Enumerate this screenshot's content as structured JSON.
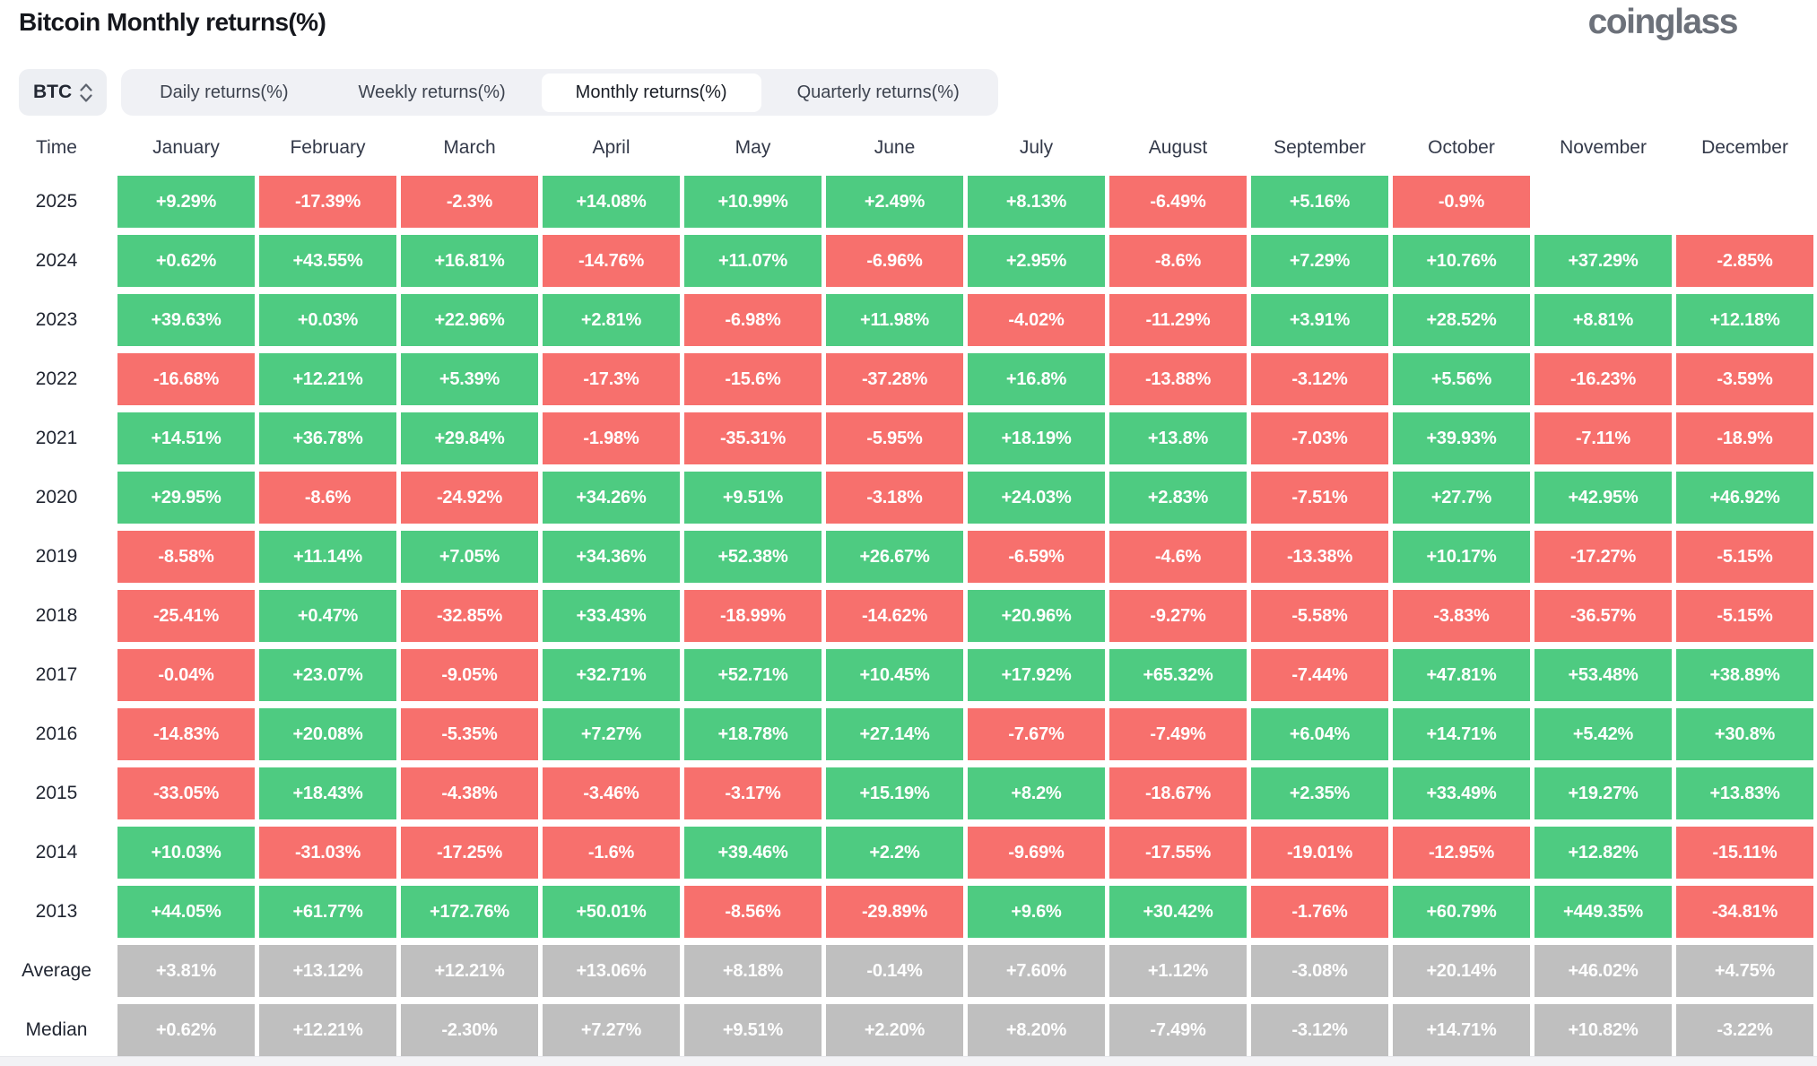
{
  "page": {
    "title": "Bitcoin Monthly returns(%)",
    "brand_logo": "coinglass"
  },
  "controls": {
    "coin_selector": {
      "value": "BTC",
      "icon": "sort-arrows-icon"
    },
    "tabs": [
      {
        "label": "Daily returns(%)",
        "active": false
      },
      {
        "label": "Weekly returns(%)",
        "active": false
      },
      {
        "label": "Monthly returns(%)",
        "active": true
      },
      {
        "label": "Quarterly returns(%)",
        "active": false
      }
    ]
  },
  "colors": {
    "positive": "#4ecb81",
    "negative": "#f7706d",
    "summary_gray": "#bfbfbf",
    "tabbar_bg": "#f0f1f5",
    "tab_active_bg": "#ffffff",
    "chip_bg": "#edeff3"
  },
  "table": {
    "time_header": "Time"
  },
  "chart_data": {
    "type": "heatmap",
    "title": "Bitcoin Monthly returns(%)",
    "columns": [
      "January",
      "February",
      "March",
      "April",
      "May",
      "June",
      "July",
      "August",
      "September",
      "October",
      "November",
      "December"
    ],
    "rows": [
      {
        "label": "2025",
        "kind": "year",
        "display": [
          "+9.29%",
          "-17.39%",
          "-2.3%",
          "+14.08%",
          "+10.99%",
          "+2.49%",
          "+8.13%",
          "-6.49%",
          "+5.16%",
          "-0.9%",
          null,
          null
        ],
        "values": [
          9.29,
          -17.39,
          -2.3,
          14.08,
          10.99,
          2.49,
          8.13,
          -6.49,
          5.16,
          -0.9,
          null,
          null
        ]
      },
      {
        "label": "2024",
        "kind": "year",
        "display": [
          "+0.62%",
          "+43.55%",
          "+16.81%",
          "-14.76%",
          "+11.07%",
          "-6.96%",
          "+2.95%",
          "-8.6%",
          "+7.29%",
          "+10.76%",
          "+37.29%",
          "-2.85%"
        ],
        "values": [
          0.62,
          43.55,
          16.81,
          -14.76,
          11.07,
          -6.96,
          2.95,
          -8.6,
          7.29,
          10.76,
          37.29,
          -2.85
        ]
      },
      {
        "label": "2023",
        "kind": "year",
        "display": [
          "+39.63%",
          "+0.03%",
          "+22.96%",
          "+2.81%",
          "-6.98%",
          "+11.98%",
          "-4.02%",
          "-11.29%",
          "+3.91%",
          "+28.52%",
          "+8.81%",
          "+12.18%"
        ],
        "values": [
          39.63,
          0.03,
          22.96,
          2.81,
          -6.98,
          11.98,
          -4.02,
          -11.29,
          3.91,
          28.52,
          8.81,
          12.18
        ]
      },
      {
        "label": "2022",
        "kind": "year",
        "display": [
          "-16.68%",
          "+12.21%",
          "+5.39%",
          "-17.3%",
          "-15.6%",
          "-37.28%",
          "+16.8%",
          "-13.88%",
          "-3.12%",
          "+5.56%",
          "-16.23%",
          "-3.59%"
        ],
        "values": [
          -16.68,
          12.21,
          5.39,
          -17.3,
          -15.6,
          -37.28,
          16.8,
          -13.88,
          -3.12,
          5.56,
          -16.23,
          -3.59
        ]
      },
      {
        "label": "2021",
        "kind": "year",
        "display": [
          "+14.51%",
          "+36.78%",
          "+29.84%",
          "-1.98%",
          "-35.31%",
          "-5.95%",
          "+18.19%",
          "+13.8%",
          "-7.03%",
          "+39.93%",
          "-7.11%",
          "-18.9%"
        ],
        "values": [
          14.51,
          36.78,
          29.84,
          -1.98,
          -35.31,
          -5.95,
          18.19,
          13.8,
          -7.03,
          39.93,
          -7.11,
          -18.9
        ]
      },
      {
        "label": "2020",
        "kind": "year",
        "display": [
          "+29.95%",
          "-8.6%",
          "-24.92%",
          "+34.26%",
          "+9.51%",
          "-3.18%",
          "+24.03%",
          "+2.83%",
          "-7.51%",
          "+27.7%",
          "+42.95%",
          "+46.92%"
        ],
        "values": [
          29.95,
          -8.6,
          -24.92,
          34.26,
          9.51,
          -3.18,
          24.03,
          2.83,
          -7.51,
          27.7,
          42.95,
          46.92
        ]
      },
      {
        "label": "2019",
        "kind": "year",
        "display": [
          "-8.58%",
          "+11.14%",
          "+7.05%",
          "+34.36%",
          "+52.38%",
          "+26.67%",
          "-6.59%",
          "-4.6%",
          "-13.38%",
          "+10.17%",
          "-17.27%",
          "-5.15%"
        ],
        "values": [
          -8.58,
          11.14,
          7.05,
          34.36,
          52.38,
          26.67,
          -6.59,
          -4.6,
          -13.38,
          10.17,
          -17.27,
          -5.15
        ]
      },
      {
        "label": "2018",
        "kind": "year",
        "display": [
          "-25.41%",
          "+0.47%",
          "-32.85%",
          "+33.43%",
          "-18.99%",
          "-14.62%",
          "+20.96%",
          "-9.27%",
          "-5.58%",
          "-3.83%",
          "-36.57%",
          "-5.15%"
        ],
        "values": [
          -25.41,
          0.47,
          -32.85,
          33.43,
          -18.99,
          -14.62,
          20.96,
          -9.27,
          -5.58,
          -3.83,
          -36.57,
          -5.15
        ]
      },
      {
        "label": "2017",
        "kind": "year",
        "display": [
          "-0.04%",
          "+23.07%",
          "-9.05%",
          "+32.71%",
          "+52.71%",
          "+10.45%",
          "+17.92%",
          "+65.32%",
          "-7.44%",
          "+47.81%",
          "+53.48%",
          "+38.89%"
        ],
        "values": [
          -0.04,
          23.07,
          -9.05,
          32.71,
          52.71,
          10.45,
          17.92,
          65.32,
          -7.44,
          47.81,
          53.48,
          38.89
        ]
      },
      {
        "label": "2016",
        "kind": "year",
        "display": [
          "-14.83%",
          "+20.08%",
          "-5.35%",
          "+7.27%",
          "+18.78%",
          "+27.14%",
          "-7.67%",
          "-7.49%",
          "+6.04%",
          "+14.71%",
          "+5.42%",
          "+30.8%"
        ],
        "values": [
          -14.83,
          20.08,
          -5.35,
          7.27,
          18.78,
          27.14,
          -7.67,
          -7.49,
          6.04,
          14.71,
          5.42,
          30.8
        ]
      },
      {
        "label": "2015",
        "kind": "year",
        "display": [
          "-33.05%",
          "+18.43%",
          "-4.38%",
          "-3.46%",
          "-3.17%",
          "+15.19%",
          "+8.2%",
          "-18.67%",
          "+2.35%",
          "+33.49%",
          "+19.27%",
          "+13.83%"
        ],
        "values": [
          -33.05,
          18.43,
          -4.38,
          -3.46,
          -3.17,
          15.19,
          8.2,
          -18.67,
          2.35,
          33.49,
          19.27,
          13.83
        ]
      },
      {
        "label": "2014",
        "kind": "year",
        "display": [
          "+10.03%",
          "-31.03%",
          "-17.25%",
          "-1.6%",
          "+39.46%",
          "+2.2%",
          "-9.69%",
          "-17.55%",
          "-19.01%",
          "-12.95%",
          "+12.82%",
          "-15.11%"
        ],
        "values": [
          10.03,
          -31.03,
          -17.25,
          -1.6,
          39.46,
          2.2,
          -9.69,
          -17.55,
          -19.01,
          -12.95,
          12.82,
          -15.11
        ]
      },
      {
        "label": "2013",
        "kind": "year",
        "display": [
          "+44.05%",
          "+61.77%",
          "+172.76%",
          "+50.01%",
          "-8.56%",
          "-29.89%",
          "+9.6%",
          "+30.42%",
          "-1.76%",
          "+60.79%",
          "+449.35%",
          "-34.81%"
        ],
        "values": [
          44.05,
          61.77,
          172.76,
          50.01,
          -8.56,
          -29.89,
          9.6,
          30.42,
          -1.76,
          60.79,
          449.35,
          -34.81
        ]
      },
      {
        "label": "Average",
        "kind": "summary",
        "display": [
          "+3.81%",
          "+13.12%",
          "+12.21%",
          "+13.06%",
          "+8.18%",
          "-0.14%",
          "+7.60%",
          "+1.12%",
          "-3.08%",
          "+20.14%",
          "+46.02%",
          "+4.75%"
        ],
        "values": [
          3.81,
          13.12,
          12.21,
          13.06,
          8.18,
          -0.14,
          7.6,
          1.12,
          -3.08,
          20.14,
          46.02,
          4.75
        ]
      },
      {
        "label": "Median",
        "kind": "summary",
        "display": [
          "+0.62%",
          "+12.21%",
          "-2.30%",
          "+7.27%",
          "+9.51%",
          "+2.20%",
          "+8.20%",
          "-7.49%",
          "-3.12%",
          "+14.71%",
          "+10.82%",
          "-3.22%"
        ],
        "values": [
          0.62,
          12.21,
          -2.3,
          7.27,
          9.51,
          2.2,
          8.2,
          -7.49,
          -3.12,
          14.71,
          10.82,
          -3.22
        ]
      }
    ]
  }
}
